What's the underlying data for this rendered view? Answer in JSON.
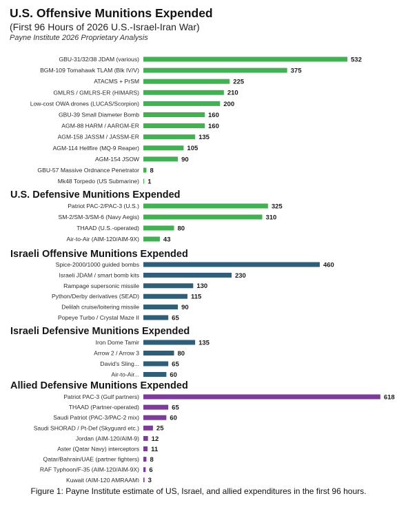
{
  "header": {
    "title": "U.S. Offensive Munitions Expended",
    "subtitle": "(First 96 Hours of 2026 U.S.-Israel-Iran War)",
    "credit": "Payne Institute 2026 Proprietary Analysis"
  },
  "caption": "Figure 1: Payne Institute estimate of US, Israel, and allied expenditures in the first 96 hours.",
  "chart_data": [
    {
      "type": "bar",
      "orientation": "horizontal",
      "title": "U.S. Offensive Munitions Expended",
      "color": "#3fb34f",
      "categories": [
        "GBU-31/32/38 JDAM (various)",
        "BGM-109 Tomahawk TLAM (Blk IV/V)",
        "ATACMS + PrSM",
        "GMLRS / GMLRS-ER (HIMARS)",
        "Low-cost OWA drones (LUCAS/Scorpion)",
        "GBU-39 Small Diameter Bomb",
        "AGM-88 HARM / AARGM-ER",
        "AGM-158 JASSM / JASSM-ER",
        "AGM-114 Hellfire (MQ-9 Reaper)",
        "AGM-154 JSOW",
        "GBU-57 Massive Ordnance Penetrator",
        "Mk48 Torpedo (US Submarine)"
      ],
      "values": [
        532,
        375,
        225,
        210,
        200,
        160,
        160,
        135,
        105,
        90,
        8,
        1
      ]
    },
    {
      "type": "bar",
      "orientation": "horizontal",
      "title": "U.S. Defensive Munitions Expended",
      "color": "#3fb34f",
      "categories": [
        "Patriot PAC-2/PAC-3 (U.S.)",
        "SM-2/SM-3/SM-6 (Navy Aegis)",
        "THAAD (U.S.-operated)",
        "Air-to-Air (AIM-120/AIM-9X)"
      ],
      "values": [
        325,
        310,
        80,
        43
      ]
    },
    {
      "type": "bar",
      "orientation": "horizontal",
      "title": "Israeli Offensive Munitions Expended",
      "color": "#2d5f7a",
      "categories": [
        "Spice-2000/1000 guided bombs",
        "Israeli JDAM / smart bomb kits",
        "Rampage supersonic missile",
        "Python/Derby derivatives (SEAD)",
        "Delilah cruise/loitering missile",
        "Popeye Turbo / Crystal Maze II"
      ],
      "values": [
        460,
        230,
        130,
        115,
        90,
        65
      ]
    },
    {
      "type": "bar",
      "orientation": "horizontal",
      "title": "Israeli Defensive Munitions Expended",
      "color": "#2d5f7a",
      "categories": [
        "Iron Dome Tamir",
        "Arrow 2 / Arrow 3",
        "David's Sling...",
        "Air-to-Air..."
      ],
      "values": [
        135,
        80,
        65,
        60
      ]
    },
    {
      "type": "bar",
      "orientation": "horizontal",
      "title": "Allied Defensive Munitions Expended",
      "color": "#7e3b9b",
      "categories": [
        "Patriot PAC-3 (Gulf partners)",
        "THAAD (Partner-operated)",
        "Saudi Patriot (PAC-3/PAC-2 mix)",
        "Saudi SHORAD / Pt-Def (Skyguard etc.)",
        "Jordan (AIM-120/AIM-9)",
        "Aster (Qatar Navy) interceptors",
        "Qatar/Bahrain/UAE (partner fighters)",
        "RAF Typhoon/F-35 (AIM-120/AIM-9X)",
        "Kuwait (AIM-120 AMRAAM)"
      ],
      "values": [
        618,
        65,
        60,
        25,
        12,
        11,
        8,
        6,
        3
      ]
    }
  ]
}
